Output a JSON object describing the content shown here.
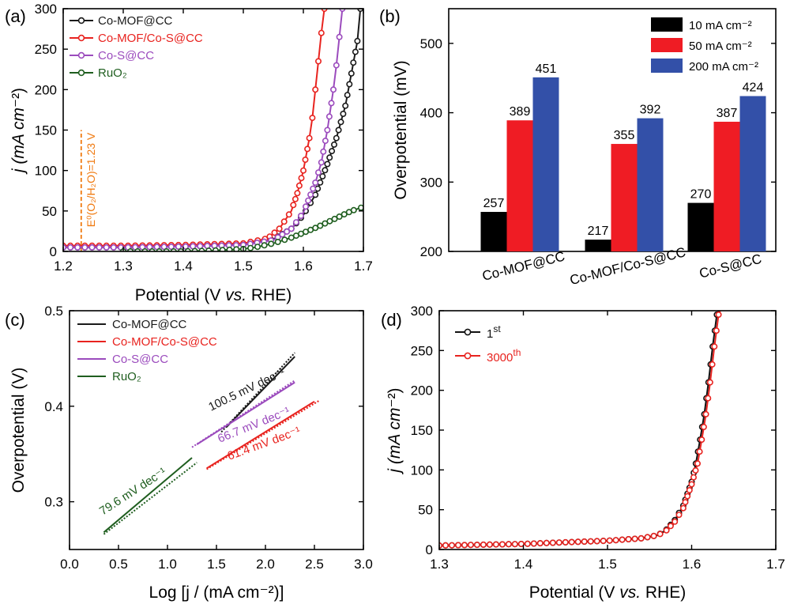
{
  "colors": {
    "co_mof_cc": "#1a1a1a",
    "co_mof_cos_cc": "#e8231f",
    "co_s_cc": "#9b4bbd",
    "ruo2": "#1f5e1f",
    "bar_10": "#000000",
    "bar_50": "#ef1c24",
    "bar_200": "#3350a8",
    "e0_line": "#f07a10",
    "cycle_1st": "#111111",
    "cycle_3000th": "#e8231f"
  },
  "chart_data": [
    {
      "panel": "(a)",
      "type": "line",
      "xlabel": "Potential (V vs. RHE)",
      "ylabel": "j (mA cm⁻²)",
      "xlim": [
        1.2,
        1.7
      ],
      "ylim": [
        0,
        300
      ],
      "xticks": [
        "1.2",
        "1.3",
        "1.4",
        "1.5",
        "1.6",
        "1.7"
      ],
      "yticks": [
        "0",
        "50",
        "100",
        "150",
        "200",
        "250",
        "300"
      ],
      "legend_position": "top-left",
      "annotation": "E⁰(O₂/H₂O)=1.23 V",
      "annotation_x": 1.23,
      "series": [
        {
          "name": "Co-MOF@CC",
          "color_key": "co_mof_cc",
          "marker": "circle",
          "x": [
            1.2,
            1.3,
            1.4,
            1.5,
            1.55,
            1.58,
            1.6,
            1.62,
            1.64,
            1.655,
            1.67,
            1.68,
            1.69,
            1.695
          ],
          "y": [
            5,
            5,
            6,
            8,
            15,
            28,
            45,
            70,
            108,
            140,
            180,
            220,
            260,
            300
          ]
        },
        {
          "name": "Co-MOF/Co-S@CC",
          "color_key": "co_mof_cos_cc",
          "marker": "circle",
          "x": [
            1.2,
            1.3,
            1.4,
            1.5,
            1.54,
            1.56,
            1.58,
            1.59,
            1.6,
            1.61,
            1.615,
            1.62,
            1.625,
            1.63,
            1.635
          ],
          "y": [
            7,
            7,
            8,
            10,
            16,
            28,
            50,
            72,
            100,
            140,
            165,
            200,
            235,
            270,
            300
          ]
        },
        {
          "name": "Co-S@CC",
          "color_key": "co_s_cc",
          "marker": "circle",
          "x": [
            1.2,
            1.3,
            1.4,
            1.5,
            1.55,
            1.58,
            1.6,
            1.62,
            1.63,
            1.64,
            1.65,
            1.655,
            1.66,
            1.665
          ],
          "y": [
            5,
            5,
            6,
            8,
            14,
            28,
            48,
            85,
            110,
            150,
            200,
            230,
            265,
            300
          ]
        },
        {
          "name": "RuO₂",
          "color_key": "ruo2",
          "marker": "circle",
          "x": [
            1.3,
            1.4,
            1.45,
            1.5,
            1.52,
            1.55,
            1.58,
            1.6,
            1.62,
            1.64,
            1.66,
            1.68,
            1.7
          ],
          "y": [
            0,
            0,
            1,
            3,
            5,
            10,
            17,
            23,
            29,
            36,
            43,
            50,
            55
          ]
        }
      ]
    },
    {
      "panel": "(b)",
      "type": "bar",
      "ylabel": "Overpotential (mV)",
      "ylim": [
        200,
        550
      ],
      "yticks": [
        "200",
        "300",
        "400",
        "500"
      ],
      "categories": [
        "Co-MOF@CC",
        "Co-MOF/Co-S@CC",
        "Co-S@CC"
      ],
      "legend_position": "top-right",
      "series": [
        {
          "name": "10 mA cm⁻²",
          "color_key": "bar_10",
          "values": [
            257,
            217,
            270
          ]
        },
        {
          "name": "50 mA cm⁻²",
          "color_key": "bar_50",
          "values": [
            389,
            355,
            387
          ]
        },
        {
          "name": "200 mA cm⁻²",
          "color_key": "bar_200",
          "values": [
            451,
            392,
            424
          ]
        }
      ]
    },
    {
      "panel": "(c)",
      "type": "line",
      "xlabel": "Log [j / (mA cm⁻²)]",
      "ylabel": "Overpotential (V)",
      "xlim": [
        0.0,
        3.0
      ],
      "ylim": [
        0.25,
        0.5
      ],
      "xticks": [
        "0.0",
        "0.5",
        "1.0",
        "1.5",
        "2.0",
        "2.5",
        "3.0"
      ],
      "yticks": [
        "0.3",
        "0.4",
        "0.5"
      ],
      "legend_position": "top-left",
      "series": [
        {
          "name": "Co-MOF@CC",
          "color_key": "co_mof_cc",
          "x": [
            1.6,
            2.3
          ],
          "y": [
            0.378,
            0.452
          ],
          "fit_x": [
            1.55,
            2.3
          ],
          "fit_y": [
            0.373,
            0.456
          ],
          "slope_label": "100.5 mV dec⁻¹"
        },
        {
          "name": "Co-MOF/Co-S@CC",
          "color_key": "co_mof_cos_cc",
          "x": [
            1.4,
            2.5
          ],
          "y": [
            0.335,
            0.405
          ],
          "fit_x": [
            1.4,
            2.55
          ],
          "fit_y": [
            0.334,
            0.406
          ],
          "slope_label": "61.4 mV dec⁻¹"
        },
        {
          "name": "Co-S@CC",
          "color_key": "co_s_cc",
          "x": [
            1.3,
            2.3
          ],
          "y": [
            0.36,
            0.425
          ],
          "fit_x": [
            1.25,
            2.3
          ],
          "fit_y": [
            0.357,
            0.427
          ],
          "slope_label": "66.7 mV dec⁻¹"
        },
        {
          "name": "RuO₂",
          "color_key": "ruo2",
          "x": [
            0.35,
            1.25
          ],
          "y": [
            0.268,
            0.346
          ],
          "fit_x": [
            0.35,
            1.3
          ],
          "fit_y": [
            0.266,
            0.341
          ],
          "slope_label": "79.6 mV dec⁻¹"
        }
      ]
    },
    {
      "panel": "(d)",
      "type": "line",
      "xlabel": "Potential (V vs. RHE)",
      "ylabel": "j (mA cm⁻²)",
      "xlim": [
        1.3,
        1.7
      ],
      "ylim": [
        0,
        300
      ],
      "xticks": [
        "1.3",
        "1.4",
        "1.5",
        "1.6",
        "1.7"
      ],
      "yticks": [
        "0",
        "50",
        "100",
        "150",
        "200",
        "250",
        "300"
      ],
      "legend_position": "top-left",
      "series": [
        {
          "name": "1st",
          "color_key": "cycle_1st",
          "marker": "circle",
          "x": [
            1.3,
            1.35,
            1.4,
            1.45,
            1.5,
            1.54,
            1.56,
            1.57,
            1.58,
            1.59,
            1.6,
            1.605,
            1.61,
            1.615,
            1.62,
            1.625,
            1.63,
            1.632
          ],
          "y": [
            5,
            6,
            7,
            9,
            11,
            14,
            18,
            25,
            37,
            55,
            85,
            108,
            138,
            170,
            210,
            255,
            295,
            300
          ]
        },
        {
          "name": "3000th",
          "color_key": "cycle_3000th",
          "marker": "circle",
          "x": [
            1.3,
            1.35,
            1.4,
            1.45,
            1.5,
            1.54,
            1.56,
            1.57,
            1.58,
            1.59,
            1.6,
            1.607,
            1.612,
            1.617,
            1.622,
            1.627,
            1.632,
            1.634
          ],
          "y": [
            5,
            6,
            7,
            9,
            11,
            14,
            18,
            24,
            35,
            52,
            82,
            108,
            138,
            170,
            210,
            255,
            295,
            300
          ]
        }
      ]
    }
  ]
}
